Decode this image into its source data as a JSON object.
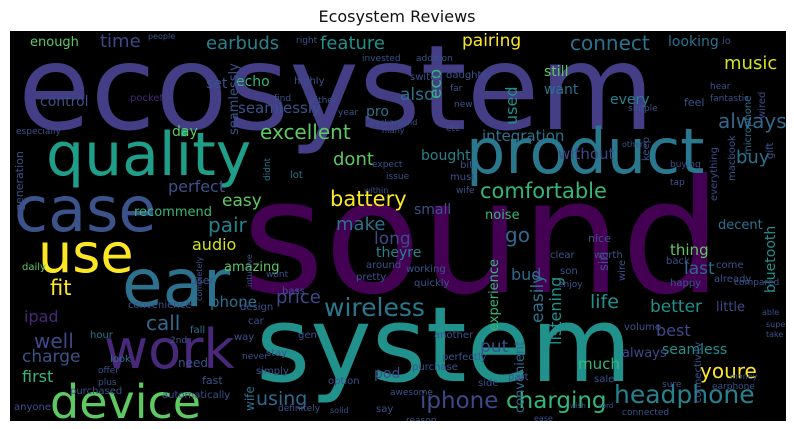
{
  "title": "Ecosystem Reviews",
  "words": {
    "sound": "sound",
    "ecosystem": "ecosystem",
    "system": "system",
    "quality": "quality",
    "product": "product",
    "case": "case",
    "ear": "ear",
    "work": "work",
    "use": "use",
    "device": "device",
    "headphone": "headphone",
    "iphone": "iphone",
    "charging": "charging",
    "wireless": "wireless",
    "battery": "battery",
    "comfortable": "comfortable",
    "integration": "integration",
    "excellent": "excellent",
    "connect": "connect",
    "music": "music",
    "earbuds": "earbuds",
    "feature": "feature",
    "pairing": "pairing",
    "time": "time",
    "enough": "enough",
    "looking": "looking",
    "echo": "echo",
    "seamlessly": "seamlessly",
    "control": "control",
    "pro": "pro",
    "also": "also",
    "still": "still",
    "want": "want",
    "always": "always",
    "every": "every",
    "buy": "buy",
    "dont": "dont",
    "bought": "bought",
    "perfect": "perfect",
    "easy": "easy",
    "recommend": "recommend",
    "make": "make",
    "pair": "pair",
    "audio": "audio",
    "amazing": "amazing",
    "fit": "fit",
    "phone": "phone",
    "price": "price",
    "call": "call",
    "well": "well",
    "charge": "charge",
    "ipad": "ipad",
    "first": "first",
    "using": "using",
    "pod": "pod",
    "put": "put",
    "much": "much",
    "long": "long",
    "go": "go",
    "bud": "bud",
    "theyre": "theyre",
    "noise": "noise",
    "better": "better",
    "best": "best",
    "seamless": "seamless",
    "youre": "youre",
    "life": "life",
    "listening": "listening",
    "easily": "easily",
    "experience": "experience",
    "convenient": "convenient",
    "thing": "thing",
    "last": "last",
    "decent": "decent",
    "little": "little",
    "bluetooth": "bluetooth",
    "eco": "eco",
    "used": "used",
    "without": "without",
    "day": "day",
    "set": "set",
    "small": "small",
    "generation": "generation",
    "especially": "especially",
    "daughter": "daughter",
    "pocket": "pocket",
    "highly": "highly",
    "lot": "lot",
    "user": "user",
    "design": "design",
    "convenience": "convenience",
    "car": "car",
    "fall": "fall",
    "need": "need",
    "fast": "fast",
    "hour": "hour",
    "look": "look",
    "offer": "offer",
    "plus": "plus",
    "daily": "daily",
    "anyone": "anyone",
    "purchased": "purchased",
    "automatically": "automatically",
    "simply": "simply",
    "stay": "stay",
    "purchase": "purchase",
    "option": "option",
    "awesome": "awesome",
    "say": "say",
    "definitely": "definitely",
    "perfectly": "perfectly",
    "side": "side",
    "part": "part",
    "connected": "connected",
    "earphone": "earphone",
    "sale": "sale",
    "come": "come",
    "already": "already",
    "happy": "happy",
    "back": "back",
    "volume": "volume",
    "worth": "worth",
    "nice": "nice",
    "clear": "clear",
    "son": "son",
    "enjoy": "enjoy",
    "around": "around",
    "pretty": "pretty",
    "quickly": "quickly",
    "working": "working",
    "wire": "wire",
    "siri": "siri",
    "another": "another",
    "gen": "gen",
    "bass": "bass",
    "wont": "wont",
    "connectivity": "connectivity",
    "sure": "sure",
    "money": "money",
    "compared": "compared",
    "able": "able",
    "super": "super",
    "take": "take",
    "macbook": "macbook",
    "microphone": "microphone",
    "wired": "wired",
    "gift": "gift",
    "io": "io",
    "hear": "hear",
    "fantastic": "fantastic",
    "feel": "feel",
    "switch": "switch",
    "right": "right",
    "invested": "invested",
    "people": "people",
    "addition": "addition",
    "far": "far",
    "find": "find",
    "either": "either",
    "keep": "keep",
    "simple": "simple",
    "new": "new",
    "year": "year",
    "many": "many",
    "background": "background",
    "expect": "expect",
    "didnt": "didnt",
    "others": "others",
    "etc": "etc",
    "bit": "bit",
    "must": "must",
    "issue": "issue",
    "within": "within",
    "wife": "wife",
    "buying": "buying",
    "tap": "tap",
    "everything": "everything",
    "intuitive": "intuitive",
    "completely": "completely",
    "2nd": "2nd",
    "way": "way",
    "never": "never",
    "reason": "reason",
    "ease": "ease",
    "solid": "solid",
    "make2": "wish",
    "cord": "cord"
  }
}
